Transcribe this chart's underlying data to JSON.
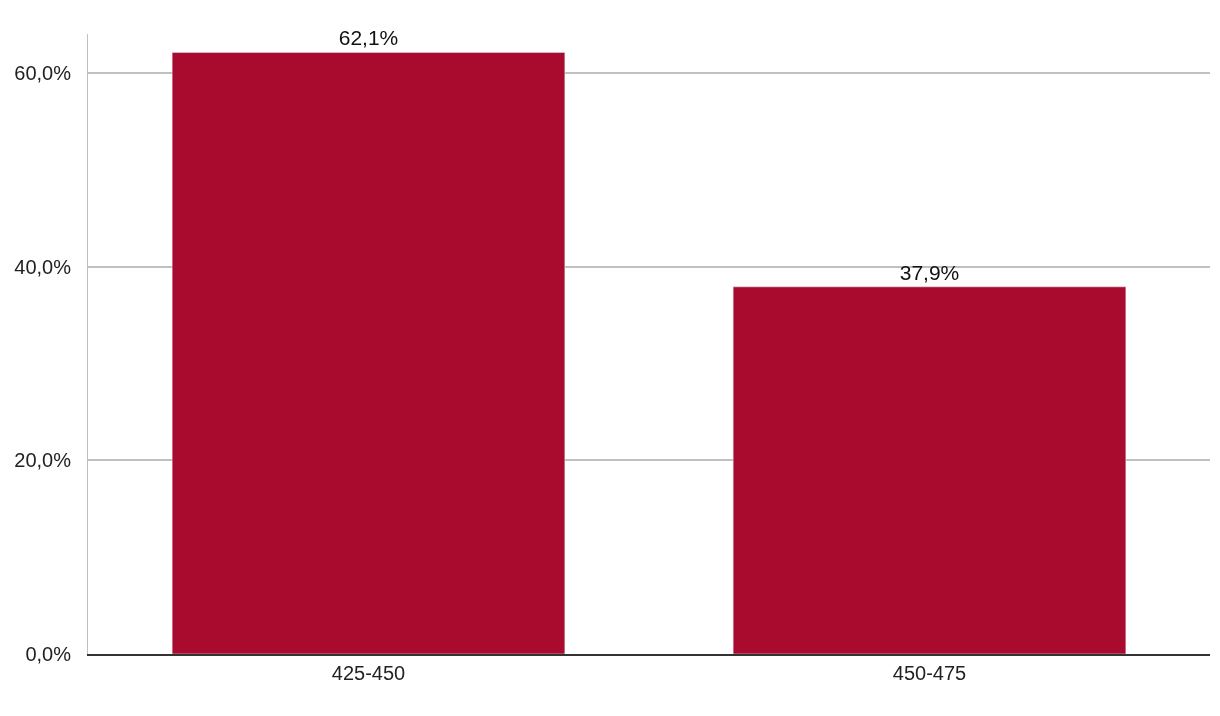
{
  "chart_data": {
    "type": "bar",
    "categories": [
      "425-450",
      "450-475"
    ],
    "values": [
      62.1,
      37.9
    ],
    "color": "#a90b2e",
    "value_labels": [
      "62,1%",
      "37,9%"
    ],
    "ylim": [
      0,
      64
    ],
    "yticks": [
      {
        "value": 0,
        "label": "0,0%"
      },
      {
        "value": 20,
        "label": "20,0%"
      },
      {
        "value": 40,
        "label": "40,0%"
      },
      {
        "value": 60,
        "label": "60,0%"
      }
    ],
    "grid": "y"
  }
}
